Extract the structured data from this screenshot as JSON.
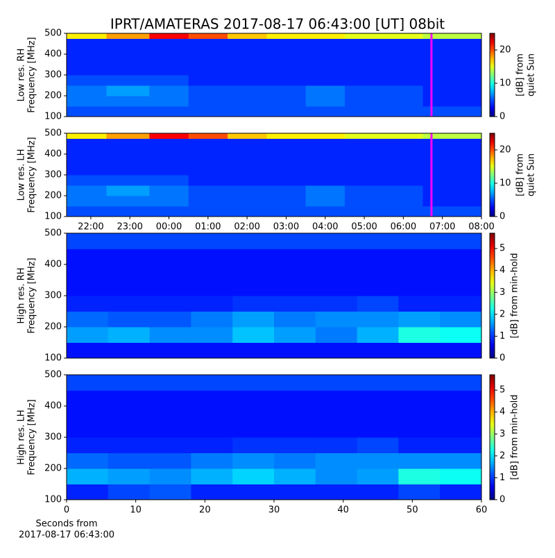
{
  "chart_data": [
    {
      "type": "heatmap",
      "title": "IPRT/AMATERAS 2017-08-17 06:43:00 [UT]   08bit",
      "ylabel": [
        "Low res. RH",
        "Frequency [MHz]"
      ],
      "colorbar_label": [
        "[dB] from",
        "quiet Sun"
      ],
      "xlim": [
        21.38,
        32
      ],
      "ylim": [
        100,
        500
      ],
      "yticks": [
        100,
        200,
        300,
        400,
        500
      ],
      "clim": [
        0,
        25
      ],
      "cticks": [
        0,
        10,
        20
      ],
      "colormap": "jet",
      "xbins": [
        21.38,
        22.4,
        23.5,
        24.5,
        25.5,
        26.5,
        27.5,
        28.5,
        29.5,
        30.5,
        32
      ],
      "ybins": [
        100,
        150,
        200,
        250,
        300,
        350,
        400,
        475,
        500
      ],
      "z": [
        [
          5,
          5,
          5,
          5,
          5,
          5,
          5,
          5,
          5,
          5
        ],
        [
          6,
          6,
          6,
          5,
          5,
          5,
          6,
          5,
          5,
          4
        ],
        [
          6,
          7,
          6,
          5,
          5,
          5,
          6,
          5,
          5,
          4
        ],
        [
          5,
          5,
          5,
          4,
          4,
          4,
          4,
          4,
          4,
          4
        ],
        [
          4,
          4,
          4,
          4,
          4,
          4,
          4,
          4,
          4,
          4
        ],
        [
          4,
          4,
          4,
          4,
          4,
          4,
          4,
          4,
          4,
          4
        ],
        [
          4,
          4,
          4,
          4,
          4,
          4,
          4,
          4,
          4,
          4
        ],
        [
          16,
          18,
          22,
          20,
          17,
          16,
          16,
          15,
          15,
          14
        ]
      ],
      "cursor": {
        "x": 30.72,
        "color": "#ff00ff"
      }
    },
    {
      "type": "heatmap",
      "ylabel": [
        "Low res. LH",
        "Frequency [MHz]"
      ],
      "colorbar_label": [
        "[dB] from",
        "quiet Sun"
      ],
      "xlim": [
        21.38,
        32
      ],
      "ylim": [
        100,
        500
      ],
      "yticks": [
        100,
        200,
        300,
        400,
        500
      ],
      "xticks": [
        {
          "value": 22,
          "label": "22:00"
        },
        {
          "value": 23,
          "label": "23:00"
        },
        {
          "value": 24,
          "label": "00:00"
        },
        {
          "value": 25,
          "label": "01:00"
        },
        {
          "value": 26,
          "label": "02:00"
        },
        {
          "value": 27,
          "label": "03:00"
        },
        {
          "value": 28,
          "label": "04:00"
        },
        {
          "value": 29,
          "label": "05:00"
        },
        {
          "value": 30,
          "label": "06:00"
        },
        {
          "value": 31,
          "label": "07:00"
        },
        {
          "value": 32,
          "label": "08:00"
        }
      ],
      "clim": [
        0,
        25
      ],
      "cticks": [
        0,
        10,
        20
      ],
      "colormap": "jet",
      "xbins": [
        21.38,
        22.4,
        23.5,
        24.5,
        25.5,
        26.5,
        27.5,
        28.5,
        29.5,
        30.5,
        32
      ],
      "ybins": [
        100,
        150,
        200,
        250,
        300,
        350,
        400,
        475,
        500
      ],
      "z": [
        [
          5,
          5,
          5,
          5,
          5,
          5,
          5,
          5,
          5,
          5
        ],
        [
          6,
          6,
          6,
          5,
          5,
          5,
          6,
          5,
          5,
          4
        ],
        [
          6,
          7,
          6,
          5,
          5,
          5,
          6,
          5,
          5,
          4
        ],
        [
          5,
          5,
          5,
          4,
          4,
          4,
          4,
          4,
          4,
          4
        ],
        [
          4,
          4,
          4,
          4,
          4,
          4,
          4,
          4,
          4,
          4
        ],
        [
          4,
          4,
          4,
          4,
          4,
          4,
          4,
          4,
          4,
          4
        ],
        [
          4,
          4,
          4,
          4,
          4,
          4,
          4,
          4,
          4,
          4
        ],
        [
          16,
          18,
          22,
          20,
          17,
          16,
          16,
          15,
          15,
          14
        ]
      ],
      "cursor": {
        "x": 30.72,
        "color": "#ff00ff"
      }
    },
    {
      "type": "heatmap",
      "ylabel": [
        "High res. RH",
        "Frequency [MHz]"
      ],
      "colorbar_label": [
        "[dB] from min-hold"
      ],
      "xlim": [
        0,
        60
      ],
      "ylim": [
        100,
        500
      ],
      "yticks": [
        100,
        200,
        300,
        400,
        500
      ],
      "clim": [
        0,
        5.7
      ],
      "cticks": [
        0,
        1,
        2,
        3,
        4,
        5
      ],
      "colormap": "jet",
      "xbins": [
        0,
        6,
        12,
        18,
        24,
        30,
        36,
        42,
        48,
        54,
        60
      ],
      "ybins": [
        100,
        150,
        200,
        250,
        300,
        350,
        400,
        450,
        500
      ],
      "z": [
        [
          0.8,
          0.8,
          0.8,
          0.8,
          0.8,
          0.8,
          0.8,
          0.8,
          0.8,
          0.8
        ],
        [
          1.6,
          1.7,
          1.5,
          1.5,
          1.8,
          1.6,
          1.4,
          1.7,
          2.3,
          2.2
        ],
        [
          1.3,
          1.2,
          1.2,
          1.4,
          1.6,
          1.4,
          1.5,
          1.5,
          1.6,
          1.5
        ],
        [
          0.9,
          0.9,
          0.9,
          0.9,
          1,
          1,
          1,
          1.1,
          0.9,
          0.9
        ],
        [
          0.8,
          0.8,
          0.8,
          0.8,
          0.8,
          0.8,
          0.8,
          0.8,
          0.8,
          0.8
        ],
        [
          0.8,
          0.8,
          0.8,
          0.8,
          0.8,
          0.8,
          0.8,
          0.8,
          0.8,
          0.8
        ],
        [
          0.8,
          0.8,
          0.8,
          0.8,
          0.8,
          0.8,
          0.8,
          0.8,
          0.8,
          0.8
        ],
        [
          1.1,
          1.1,
          1.1,
          1.1,
          1.1,
          1.1,
          1.1,
          1.1,
          1.1,
          1.1
        ]
      ]
    },
    {
      "type": "heatmap",
      "ylabel": [
        "High res. LH",
        "Frequency [MHz]"
      ],
      "colorbar_label": [
        "[dB] from min-hold"
      ],
      "xlabel": [
        "Seconds from",
        "2017-08-17 06:43:00"
      ],
      "xlim": [
        0,
        60
      ],
      "ylim": [
        100,
        500
      ],
      "yticks": [
        100,
        200,
        300,
        400,
        500
      ],
      "xticks": [
        0,
        10,
        20,
        30,
        40,
        50,
        60
      ],
      "clim": [
        0,
        5.7
      ],
      "cticks": [
        0,
        1,
        2,
        3,
        4,
        5
      ],
      "colormap": "jet",
      "xbins": [
        0,
        6,
        12,
        18,
        24,
        30,
        36,
        42,
        48,
        54,
        60
      ],
      "ybins": [
        100,
        150,
        200,
        250,
        300,
        350,
        400,
        450,
        500
      ],
      "z": [
        [
          0.9,
          1.1,
          1.2,
          0.9,
          0.9,
          0.9,
          0.9,
          0.9,
          1.1,
          0.9
        ],
        [
          1.7,
          1.6,
          1.5,
          1.7,
          1.9,
          1.7,
          1.5,
          1.6,
          2.3,
          2.2
        ],
        [
          1.3,
          1.2,
          1.2,
          1.4,
          1.5,
          1.4,
          1.5,
          1.5,
          1.5,
          1.5
        ],
        [
          0.9,
          0.9,
          0.9,
          0.9,
          1,
          1,
          1,
          1.1,
          0.9,
          0.9
        ],
        [
          0.8,
          0.8,
          0.8,
          0.8,
          0.8,
          0.8,
          0.8,
          0.8,
          0.8,
          0.8
        ],
        [
          0.8,
          0.8,
          0.8,
          0.8,
          0.8,
          0.8,
          0.8,
          0.8,
          0.8,
          0.8
        ],
        [
          0.8,
          0.8,
          0.8,
          0.8,
          0.8,
          0.8,
          0.8,
          0.8,
          0.8,
          0.8
        ],
        [
          1.1,
          1.1,
          1.1,
          1.1,
          1.1,
          1.1,
          1.1,
          1.1,
          1.1,
          1.1
        ]
      ]
    }
  ]
}
